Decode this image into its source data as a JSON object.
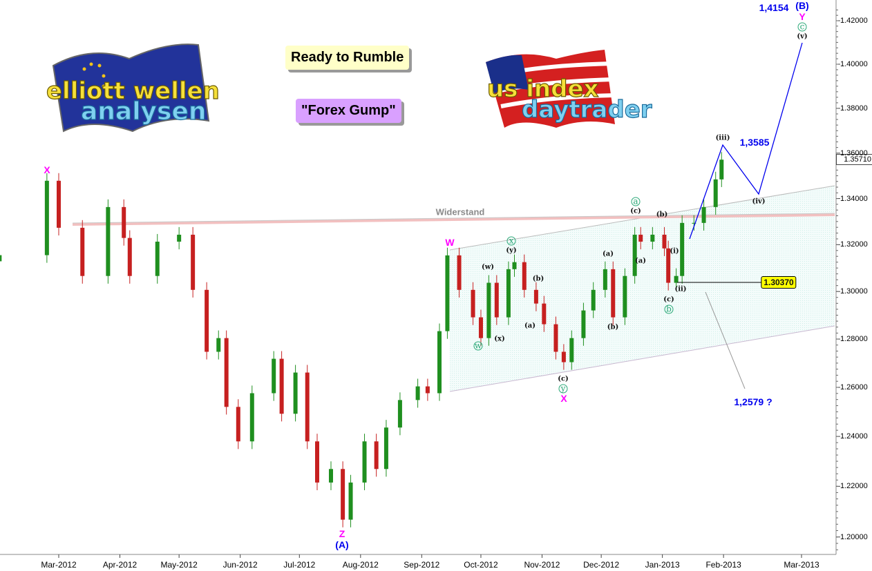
{
  "banners": {
    "top": "Ready to Rumble",
    "bottom": "\"Forex Gump\""
  },
  "logos": {
    "left": {
      "line1": "elliott wellen",
      "line2": "analysen"
    },
    "right": {
      "line1": "us index",
      "line2": "daytrader"
    }
  },
  "colors": {
    "up": "#1f8f1f",
    "down": "#c62020",
    "projection": "#0000ee",
    "resistance": "#f2b8b8",
    "channel_fill": "#eefaf8",
    "wave_magenta": "#ff00ff",
    "wave_green": "#2aa877"
  },
  "chart_data": {
    "type": "candlestick",
    "title": "",
    "y_scale": "log",
    "ylim": [
      1.19,
      1.425
    ],
    "y_ticks": [
      "1.42000",
      "1.40000",
      "1.38000",
      "1.36000",
      "1.34000",
      "1.32000",
      "1.30000",
      "1.28000",
      "1.26000",
      "1.24000",
      "1.22000",
      "1.20000"
    ],
    "x_ticks": [
      {
        "label": "Mar-2012",
        "date": "2012-03-01"
      },
      {
        "label": "Apr-2012",
        "date": "2012-04-01"
      },
      {
        "label": "May-2012",
        "date": "2012-05-01"
      },
      {
        "label": "Jun-2012",
        "date": "2012-06-01"
      },
      {
        "label": "Jul-2012",
        "date": "2012-07-01"
      },
      {
        "label": "Aug-2012",
        "date": "2012-08-01"
      },
      {
        "label": "Sep-2012",
        "date": "2012-09-01"
      },
      {
        "label": "Oct-2012",
        "date": "2012-10-01"
      },
      {
        "label": "Nov-2012",
        "date": "2012-11-01"
      },
      {
        "label": "Dec-2012",
        "date": "2012-12-01"
      },
      {
        "label": "Jan-2013",
        "date": "2013-01-01"
      },
      {
        "label": "Feb-2013",
        "date": "2013-02-01"
      },
      {
        "label": "Mar-2013",
        "date": "2013-03-01"
      }
    ],
    "current_price": "1.35710",
    "closes": [
      [
        "2012-01-31",
        1.3155
      ],
      [
        "2012-02-24",
        1.3478
      ],
      [
        "2012-03-01",
        1.3273
      ],
      [
        "2012-03-13",
        1.3066
      ],
      [
        "2012-03-26",
        1.3363
      ],
      [
        "2012-04-03",
        1.3229
      ],
      [
        "2012-04-06",
        1.3066
      ],
      [
        "2012-04-20",
        1.3213
      ],
      [
        "2012-05-01",
        1.3243
      ],
      [
        "2012-05-08",
        1.3007
      ],
      [
        "2012-05-15",
        1.2747
      ],
      [
        "2012-05-21",
        1.2804
      ],
      [
        "2012-05-25",
        1.252
      ],
      [
        "2012-05-31",
        1.238
      ],
      [
        "2012-06-07",
        1.2576
      ],
      [
        "2012-06-18",
        1.2718
      ],
      [
        "2012-06-22",
        1.2492
      ],
      [
        "2012-06-29",
        1.2661
      ],
      [
        "2012-07-05",
        1.238
      ],
      [
        "2012-07-10",
        1.2215
      ],
      [
        "2012-07-17",
        1.2269
      ],
      [
        "2012-07-23",
        1.2068
      ],
      [
        "2012-07-27",
        1.2215
      ],
      [
        "2012-08-03",
        1.238
      ],
      [
        "2012-08-09",
        1.2269
      ],
      [
        "2012-08-14",
        1.2436
      ],
      [
        "2012-08-21",
        1.2548
      ],
      [
        "2012-08-30",
        1.2604
      ],
      [
        "2012-09-04",
        1.2576
      ],
      [
        "2012-09-10",
        1.2833
      ],
      [
        "2012-09-14",
        1.3154
      ],
      [
        "2012-09-20",
        1.3007
      ],
      [
        "2012-09-27",
        1.2891
      ],
      [
        "2012-10-01",
        1.2804
      ],
      [
        "2012-10-05",
        1.3037
      ],
      [
        "2012-10-09",
        1.2891
      ],
      [
        "2012-10-15",
        1.3095
      ],
      [
        "2012-10-18",
        1.3125
      ],
      [
        "2012-10-23",
        1.3007
      ],
      [
        "2012-10-29",
        1.2949
      ],
      [
        "2012-11-02",
        1.2862
      ],
      [
        "2012-11-08",
        1.2747
      ],
      [
        "2012-11-12",
        1.2704
      ],
      [
        "2012-11-16",
        1.2804
      ],
      [
        "2012-11-22",
        1.292
      ],
      [
        "2012-11-27",
        1.3007
      ],
      [
        "2012-12-03",
        1.3095
      ],
      [
        "2012-12-07",
        1.2891
      ],
      [
        "2012-12-13",
        1.3066
      ],
      [
        "2012-12-18",
        1.3243
      ],
      [
        "2012-12-21",
        1.3213
      ],
      [
        "2012-12-27",
        1.3243
      ],
      [
        "2013-01-02",
        1.3184
      ],
      [
        "2013-01-04",
        1.3037
      ],
      [
        "2013-01-08",
        1.3066
      ],
      [
        "2013-01-11",
        1.3294
      ],
      [
        "2013-01-17",
        1.3294
      ],
      [
        "2013-01-22",
        1.3363
      ],
      [
        "2013-01-28",
        1.3484
      ],
      [
        "2013-01-31",
        1.3571
      ]
    ],
    "resistance_label": "Widerstand",
    "projection_targets": [
      "1,3585",
      "1,4154",
      "1,2579 ?"
    ],
    "level_box": "1.30370",
    "wave_labels": [
      {
        "text": "X",
        "style": "magenta"
      },
      {
        "text": "W",
        "style": "magenta"
      },
      {
        "text": "Z",
        "style": "magenta"
      },
      {
        "text": "(A)",
        "style": "blue"
      },
      {
        "text": "x",
        "style": "green"
      },
      {
        "text": "(y)",
        "style": "black"
      },
      {
        "text": "(w)",
        "style": "black"
      },
      {
        "text": "w",
        "style": "green"
      },
      {
        "text": "(x)",
        "style": "black"
      },
      {
        "text": "(b)",
        "style": "black"
      },
      {
        "text": "(a)",
        "style": "black"
      },
      {
        "text": "(c)",
        "style": "black"
      },
      {
        "text": "y",
        "style": "green"
      },
      {
        "text": "X",
        "style": "magenta"
      },
      {
        "text": "(a)",
        "style": "black"
      },
      {
        "text": "(b)",
        "style": "black"
      },
      {
        "text": "a",
        "style": "green"
      },
      {
        "text": "(c)",
        "style": "black"
      },
      {
        "text": "(a)",
        "style": "black"
      },
      {
        "text": "(b)",
        "style": "black"
      },
      {
        "text": "(i)",
        "style": "black"
      },
      {
        "text": "(ii)",
        "style": "black"
      },
      {
        "text": "(c)",
        "style": "black"
      },
      {
        "text": "b",
        "style": "green"
      },
      {
        "text": "(iii)",
        "style": "black"
      },
      {
        "text": "(iv)",
        "style": "black"
      },
      {
        "text": "(v)",
        "style": "black"
      },
      {
        "text": "c",
        "style": "green"
      },
      {
        "text": "Y",
        "style": "magenta"
      },
      {
        "text": "(B)",
        "style": "blue"
      }
    ]
  }
}
